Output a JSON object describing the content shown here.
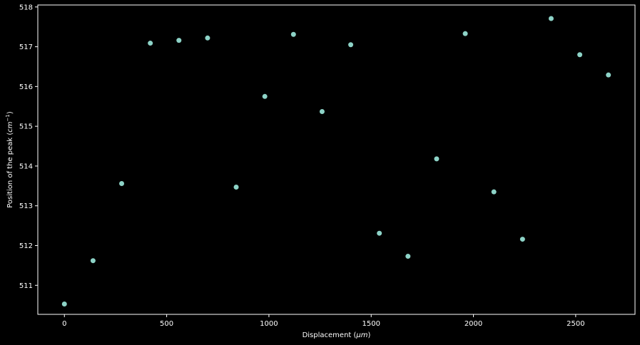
{
  "chart_data": {
    "type": "scatter",
    "title": "",
    "xlabel_main": "Displacement (",
    "xlabel_unit": "μm",
    "xlabel_close": ")",
    "ylabel_main": "Position of the peak (",
    "ylabel_unit": "cm",
    "ylabel_sup": "−1",
    "ylabel_close": ")",
    "xlim": [
      -130,
      2790
    ],
    "ylim": [
      510.27,
      518.05
    ],
    "xticks": [
      0,
      500,
      1000,
      1500,
      2000,
      2500
    ],
    "xtick_labels": [
      "0",
      "500",
      "1000",
      "1500",
      "2000",
      "2500"
    ],
    "yticks": [
      511,
      512,
      513,
      514,
      515,
      516,
      517,
      518
    ],
    "ytick_labels": [
      "511",
      "512",
      "513",
      "514",
      "515",
      "516",
      "517",
      "518"
    ],
    "grid": false,
    "point_color": "#8dd3c7",
    "background": "#000000",
    "foreground": "#ffffff",
    "x": [
      0,
      140,
      280,
      420,
      560,
      700,
      840,
      980,
      1120,
      1260,
      1400,
      1540,
      1680,
      1820,
      1960,
      2100,
      2240,
      2380,
      2520,
      2660
    ],
    "y": [
      510.53,
      511.62,
      513.56,
      517.09,
      517.16,
      517.22,
      513.47,
      515.75,
      517.31,
      515.37,
      517.05,
      512.31,
      511.73,
      514.18,
      517.33,
      513.35,
      512.16,
      517.71,
      516.8,
      516.29
    ]
  }
}
